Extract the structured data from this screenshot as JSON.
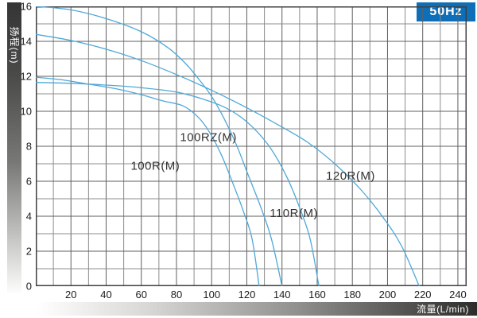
{
  "header": {
    "frequency_badge": "50Hz",
    "badge_color": "#0e6fb8"
  },
  "axes": {
    "y_title": "扬程(m)",
    "x_title": "流量(L/min)",
    "x_tick_labels": [
      20,
      40,
      60,
      80,
      100,
      120,
      140,
      160,
      180,
      200,
      220,
      240
    ],
    "y_tick_labels": [
      0,
      2,
      4,
      6,
      8,
      10,
      12,
      14,
      16
    ],
    "x_minor_step": 10,
    "y_minor_step": 1
  },
  "chart_data": {
    "type": "line",
    "title": "",
    "xlabel": "流量(L/min)",
    "ylabel": "扬程(m)",
    "xlim": [
      0,
      245
    ],
    "ylim": [
      0,
      16
    ],
    "grid": true,
    "legend_position": "labels-on-curves",
    "curve_color": "#4fa8d8",
    "series": [
      {
        "name": "100R(M)",
        "points": [
          [
            0,
            11.95
          ],
          [
            15,
            11.8
          ],
          [
            30,
            11.55
          ],
          [
            45,
            11.3
          ],
          [
            60,
            10.95
          ],
          [
            72,
            10.6
          ],
          [
            84,
            10.3
          ],
          [
            93,
            9.6
          ],
          [
            100,
            8.6
          ],
          [
            106,
            7.4
          ],
          [
            112,
            5.9
          ],
          [
            118,
            4.3
          ],
          [
            123,
            2.7
          ],
          [
            127,
            0
          ]
        ],
        "label": "100R(M)",
        "label_anchor": {
          "x": 54,
          "y": 6.65
        }
      },
      {
        "name": "110R(M)",
        "points": [
          [
            0,
            11.65
          ],
          [
            20,
            11.6
          ],
          [
            40,
            11.5
          ],
          [
            60,
            11.35
          ],
          [
            80,
            11.1
          ],
          [
            95,
            10.7
          ],
          [
            108,
            10.2
          ],
          [
            120,
            9.4
          ],
          [
            132,
            8.1
          ],
          [
            142,
            6.4
          ],
          [
            150,
            4.5
          ],
          [
            156,
            2.7
          ],
          [
            161,
            0
          ]
        ],
        "label": "110R(M)",
        "label_anchor": {
          "x": 133,
          "y": 3.95
        }
      },
      {
        "name": "100RZ(M)",
        "points": [
          [
            0,
            16
          ],
          [
            20,
            15.8
          ],
          [
            40,
            15.3
          ],
          [
            60,
            14.55
          ],
          [
            75,
            13.65
          ],
          [
            85,
            12.75
          ],
          [
            93,
            11.8
          ],
          [
            100,
            10.85
          ],
          [
            107,
            9.6
          ],
          [
            114,
            8.1
          ],
          [
            121,
            6.3
          ],
          [
            128,
            4.5
          ],
          [
            134,
            2.7
          ],
          [
            140,
            0
          ]
        ],
        "label": "100RZ(M)",
        "label_anchor": {
          "x": 82,
          "y": 8.3
        }
      },
      {
        "name": "120R(M)",
        "points": [
          [
            0,
            14.4
          ],
          [
            20,
            14.05
          ],
          [
            40,
            13.55
          ],
          [
            60,
            12.9
          ],
          [
            80,
            12.1
          ],
          [
            100,
            11.2
          ],
          [
            120,
            10.2
          ],
          [
            140,
            9.1
          ],
          [
            155,
            8.2
          ],
          [
            170,
            7.0
          ],
          [
            185,
            5.5
          ],
          [
            197,
            4.0
          ],
          [
            208,
            2.3
          ],
          [
            218,
            0
          ]
        ],
        "label": "120R(M)",
        "label_anchor": {
          "x": 165,
          "y": 6.1
        }
      }
    ]
  },
  "style": {
    "grid_major_color": "#5f5f5f",
    "grid_minor_color": "#8c8c8c",
    "border_color": "#3f3f3f",
    "label_color": "#333333"
  }
}
